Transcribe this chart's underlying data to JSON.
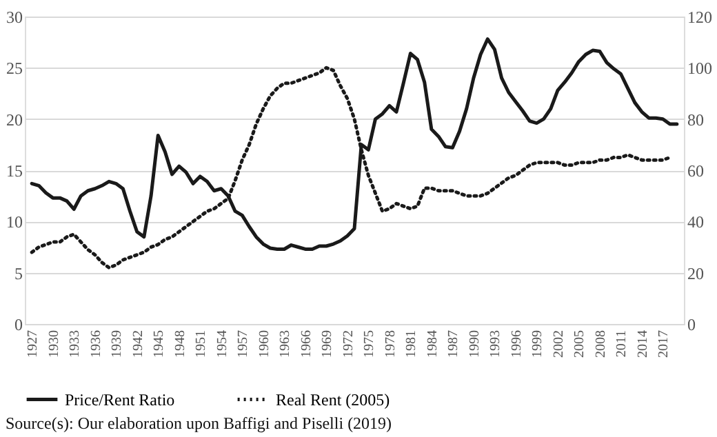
{
  "chart_data": {
    "type": "line",
    "x": [
      1927,
      1928,
      1929,
      1930,
      1931,
      1932,
      1933,
      1934,
      1935,
      1936,
      1937,
      1938,
      1939,
      1940,
      1941,
      1942,
      1943,
      1944,
      1945,
      1946,
      1947,
      1948,
      1949,
      1950,
      1951,
      1952,
      1953,
      1954,
      1955,
      1956,
      1957,
      1958,
      1959,
      1960,
      1961,
      1962,
      1963,
      1964,
      1965,
      1966,
      1967,
      1968,
      1969,
      1970,
      1971,
      1972,
      1973,
      1974,
      1975,
      1976,
      1977,
      1978,
      1979,
      1980,
      1981,
      1982,
      1983,
      1984,
      1985,
      1986,
      1987,
      1988,
      1989,
      1990,
      1991,
      1992,
      1993,
      1994,
      1995,
      1996,
      1997,
      1998,
      1999,
      2000,
      2001,
      2002,
      2003,
      2004,
      2005,
      2006,
      2007,
      2008,
      2009,
      2010,
      2011,
      2012,
      2013,
      2014,
      2015,
      2016,
      2017,
      2018,
      2019
    ],
    "series": [
      {
        "name": "Price/Rent Ratio",
        "color": "#1a1a1a",
        "line_style": "solid",
        "values": [
          13.7,
          13.5,
          12.8,
          12.3,
          12.3,
          12.0,
          11.2,
          12.5,
          13.0,
          13.2,
          13.5,
          13.9,
          13.7,
          13.2,
          11.0,
          9.0,
          8.5,
          12.5,
          18.4,
          16.8,
          14.6,
          15.4,
          14.8,
          13.7,
          14.4,
          13.9,
          13.0,
          13.2,
          12.5,
          11.0,
          10.6,
          9.5,
          8.5,
          7.8,
          7.4,
          7.3,
          7.3,
          7.7,
          7.5,
          7.3,
          7.3,
          7.6,
          7.6,
          7.8,
          8.1,
          8.6,
          9.3,
          17.5,
          17.0,
          20.0,
          20.5,
          21.3,
          20.7,
          23.5,
          26.4,
          25.8,
          23.6,
          19.0,
          18.3,
          17.3,
          17.2,
          18.8,
          21.0,
          24.0,
          26.3,
          27.8,
          26.8,
          24.0,
          22.6,
          21.7,
          20.8,
          19.8,
          19.6,
          20.0,
          21.0,
          22.8,
          23.6,
          24.5,
          25.6,
          26.3,
          26.7,
          26.6,
          25.5,
          24.9,
          24.4,
          23.0,
          21.6,
          20.7,
          20.1,
          20.1,
          20.0,
          19.5,
          19.5
        ]
      },
      {
        "name": "Real Rent (2005)",
        "color": "#1a1a1a",
        "line_style": "dotted",
        "axis": "y2",
        "values": [
          28,
          30,
          31,
          32,
          32,
          34,
          35,
          32,
          29,
          27,
          24,
          22,
          23,
          25,
          26,
          27,
          28,
          30,
          31,
          33,
          34,
          36,
          38,
          40,
          42,
          44,
          45,
          47,
          49,
          56,
          64,
          70,
          78,
          84,
          89,
          92,
          94,
          94,
          95,
          96,
          97,
          98,
          100,
          99,
          93,
          88,
          80,
          68,
          58,
          51,
          44,
          45,
          47,
          46,
          45,
          46,
          53,
          53,
          52,
          52,
          52,
          51,
          50,
          50,
          50,
          51,
          53,
          55,
          57,
          58,
          60,
          62,
          63,
          63,
          63,
          63,
          62,
          62,
          63,
          63,
          63,
          64,
          64,
          65,
          65,
          66,
          65,
          64,
          64,
          64,
          64,
          65,
          null
        ]
      }
    ],
    "xlim": [
      1926,
      2020
    ],
    "xticks": [
      1927,
      1930,
      1933,
      1936,
      1939,
      1942,
      1945,
      1948,
      1951,
      1954,
      1957,
      1960,
      1963,
      1966,
      1969,
      1972,
      1975,
      1978,
      1981,
      1984,
      1987,
      1990,
      1993,
      1996,
      1999,
      2002,
      2005,
      2008,
      2011,
      2014,
      2017
    ],
    "ylim": [
      0,
      30
    ],
    "yticks": [
      0,
      5,
      10,
      15,
      20,
      25,
      30
    ],
    "y2lim": [
      0,
      120
    ],
    "y2ticks": [
      0,
      20,
      40,
      60,
      80,
      100,
      120
    ],
    "grid": "y",
    "legend": "bottom",
    "annotations": [
      "Source(s): Our elaboration upon Baffigi and Piselli (2019)"
    ]
  }
}
